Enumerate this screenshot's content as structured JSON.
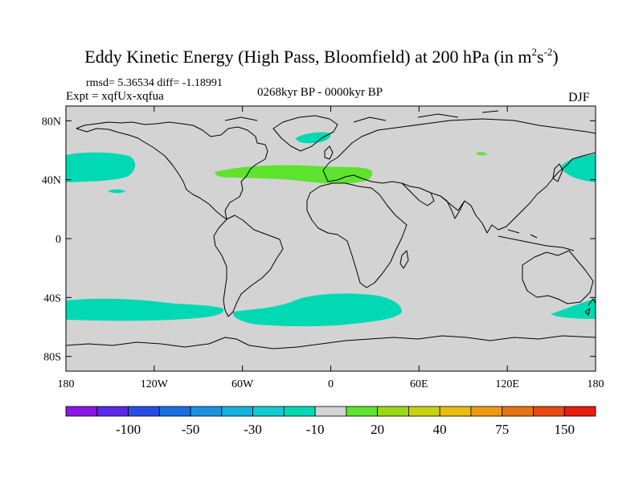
{
  "title": {
    "main": "Eddy Kinetic Energy (High Pass, Bloomfield) at 200 hPa (in m",
    "unit_sup1": "2",
    "unit_s": "s",
    "unit_sup2": "-2",
    "close": ")"
  },
  "stats": "rmsd= 5.36534 diff= -1.18991",
  "expt": "Expt = xqfUx-xqfua",
  "period": "0268kyr BP - 0000kyr BP",
  "season": "DJF",
  "map": {
    "background_color": "#d3d3d3",
    "lat_ticks": [
      "80N",
      "40N",
      "0",
      "40S",
      "80S"
    ],
    "lat_values": [
      80,
      40,
      0,
      -40,
      -80
    ],
    "lon_ticks": [
      "180",
      "120W",
      "60W",
      "0",
      "60E",
      "120E",
      "180"
    ],
    "lon_values": [
      -180,
      -120,
      -60,
      0,
      60,
      120,
      180
    ],
    "features": [
      {
        "name": "north-pacific-negative-band",
        "level": -10,
        "color": "#00d9b4"
      },
      {
        "name": "north-atlantic-positive-band",
        "level": 20,
        "color": "#5ee32f"
      },
      {
        "name": "southern-ocean-negative-band",
        "level": -10,
        "color": "#00d9b4"
      }
    ]
  },
  "colorbar": {
    "colors": [
      "#8a16e6",
      "#5a28e8",
      "#2a4ce6",
      "#1a6fe0",
      "#1a92e0",
      "#14b2dc",
      "#10ccd0",
      "#00d9b4",
      "#d3d3d3",
      "#5ee32f",
      "#9ad916",
      "#c8d110",
      "#e8be10",
      "#ee9a10",
      "#e57512",
      "#e84a12",
      "#e61d10"
    ],
    "labels": [
      "-100",
      "-50",
      "-30",
      "-10",
      "20",
      "40",
      "75",
      "150"
    ]
  }
}
